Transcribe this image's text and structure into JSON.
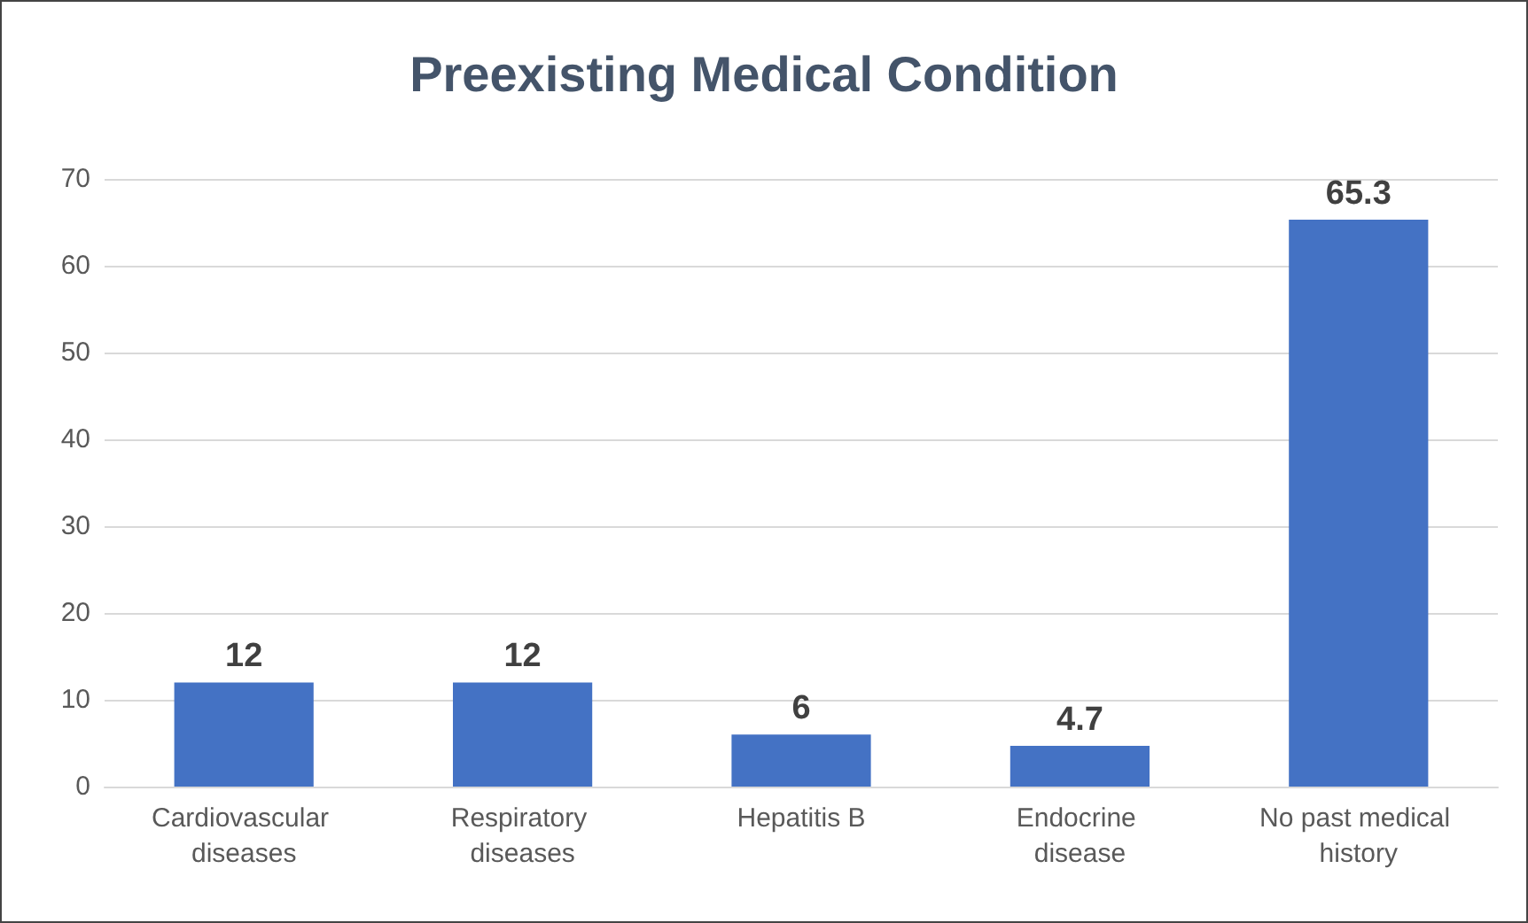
{
  "chart_data": {
    "type": "bar",
    "title": "Preexisting Medical Condition",
    "categories": [
      "Cardiovascular diseases",
      "Respiratory diseases",
      "Hepatitis B",
      "Endocrine disease",
      "No past medical history"
    ],
    "values": [
      12,
      12,
      6,
      4.7,
      65.3
    ],
    "color": "#4472c4",
    "ylim": [
      0,
      70
    ],
    "yticks": [
      0,
      10,
      20,
      30,
      40,
      50,
      60,
      70
    ],
    "grid": "y",
    "data_labels": true
  }
}
